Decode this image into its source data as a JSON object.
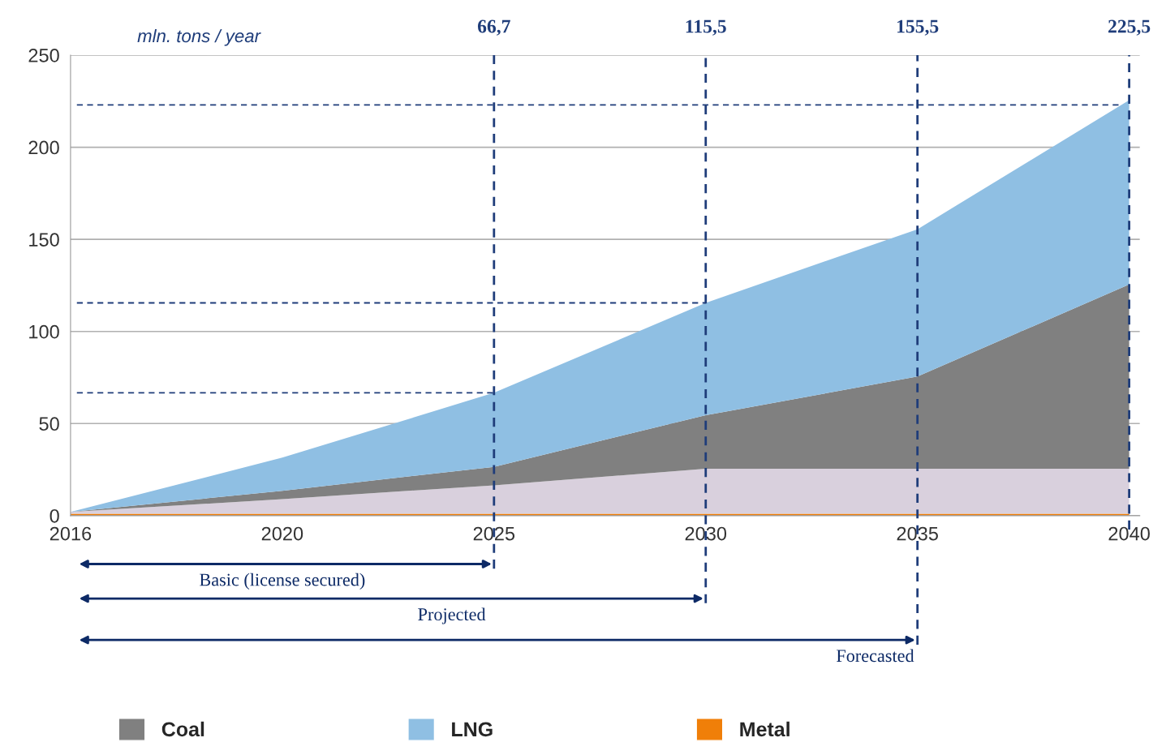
{
  "chart_data": {
    "type": "area",
    "stacked": true,
    "ylabel": "mln. tons / year",
    "categories": [
      "2016",
      "2020",
      "2025",
      "2030",
      "2035",
      "2040"
    ],
    "series": [
      {
        "name": "Metal",
        "color": "#f07f09",
        "values": [
          1,
          1,
          1,
          1,
          1,
          1
        ]
      },
      {
        "color": "#d9d0dd",
        "values": [
          1,
          8,
          15.5,
          24.5,
          24.5,
          24.5
        ]
      },
      {
        "name": "Coal",
        "color": "#808080",
        "values": [
          0,
          4.5,
          10,
          29,
          50,
          100
        ]
      },
      {
        "name": "LNG",
        "color": "#8fbfe3",
        "values": [
          0,
          18,
          40.2,
          61,
          80,
          100
        ]
      }
    ],
    "ylim": [
      0,
      250
    ],
    "yticks": [
      0,
      50,
      100,
      150,
      200,
      250
    ],
    "grid": "y",
    "legend": "bottom",
    "ref_lines": [
      {
        "axis": "x",
        "value": "2025",
        "label": "66,7",
        "color": "#1f3d7a",
        "line_style": "dashed"
      },
      {
        "axis": "x",
        "value": "2030",
        "label": "115,5",
        "color": "#1f3d7a",
        "line_style": "dashed"
      },
      {
        "axis": "x",
        "value": "2035",
        "label": "155,5",
        "color": "#1f3d7a",
        "line_style": "dashed"
      },
      {
        "axis": "x",
        "value": "2040",
        "label": "225,5",
        "color": "#1f3d7a",
        "line_style": "dashed"
      },
      {
        "axis": "y",
        "value": 66.7,
        "color": "#1f3d7a",
        "line_style": "dashed"
      },
      {
        "axis": "y",
        "value": 115.5,
        "color": "#1f3d7a",
        "line_style": "dashed"
      },
      {
        "axis": "y",
        "value": 223,
        "color": "#1f3d7a",
        "line_style": "dashed"
      }
    ],
    "annotations": [
      "Basic (license secured)",
      "Projected",
      "Forecasted"
    ]
  }
}
